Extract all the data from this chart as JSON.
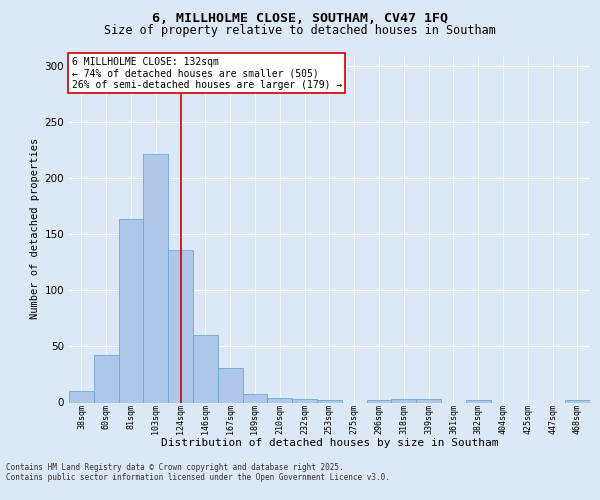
{
  "title_line1": "6, MILLHOLME CLOSE, SOUTHAM, CV47 1FQ",
  "title_line2": "Size of property relative to detached houses in Southam",
  "xlabel": "Distribution of detached houses by size in Southam",
  "ylabel": "Number of detached properties",
  "categories": [
    "38sqm",
    "60sqm",
    "81sqm",
    "103sqm",
    "124sqm",
    "146sqm",
    "167sqm",
    "189sqm",
    "210sqm",
    "232sqm",
    "253sqm",
    "275sqm",
    "296sqm",
    "318sqm",
    "339sqm",
    "361sqm",
    "382sqm",
    "404sqm",
    "425sqm",
    "447sqm",
    "468sqm"
  ],
  "values": [
    10,
    42,
    164,
    222,
    136,
    60,
    31,
    8,
    4,
    3,
    2,
    0,
    2,
    3,
    3,
    0,
    2,
    0,
    0,
    0,
    2
  ],
  "bar_color": "#aec6e8",
  "bar_edge_color": "#6aaad4",
  "vline_color": "#cc0000",
  "vline_index": 4.0,
  "annotation_title": "6 MILLHOLME CLOSE: 132sqm",
  "annotation_line1": "← 74% of detached houses are smaller (505)",
  "annotation_line2": "26% of semi-detached houses are larger (179) →",
  "annotation_box_color": "#ffffff",
  "annotation_box_edge_color": "#cc0000",
  "ylim": [
    0,
    310
  ],
  "yticks": [
    0,
    50,
    100,
    150,
    200,
    250,
    300
  ],
  "footer_line1": "Contains HM Land Registry data © Crown copyright and database right 2025.",
  "footer_line2": "Contains public sector information licensed under the Open Government Licence v3.0.",
  "bg_color": "#dce8f5",
  "plot_bg_color": "#dce8f5",
  "title_fontsize": 9.5,
  "subtitle_fontsize": 8.5,
  "ylabel_fontsize": 7.5,
  "xlabel_fontsize": 8,
  "tick_fontsize": 6,
  "ytick_fontsize": 7.5,
  "footer_fontsize": 5.5,
  "ann_fontsize": 7
}
